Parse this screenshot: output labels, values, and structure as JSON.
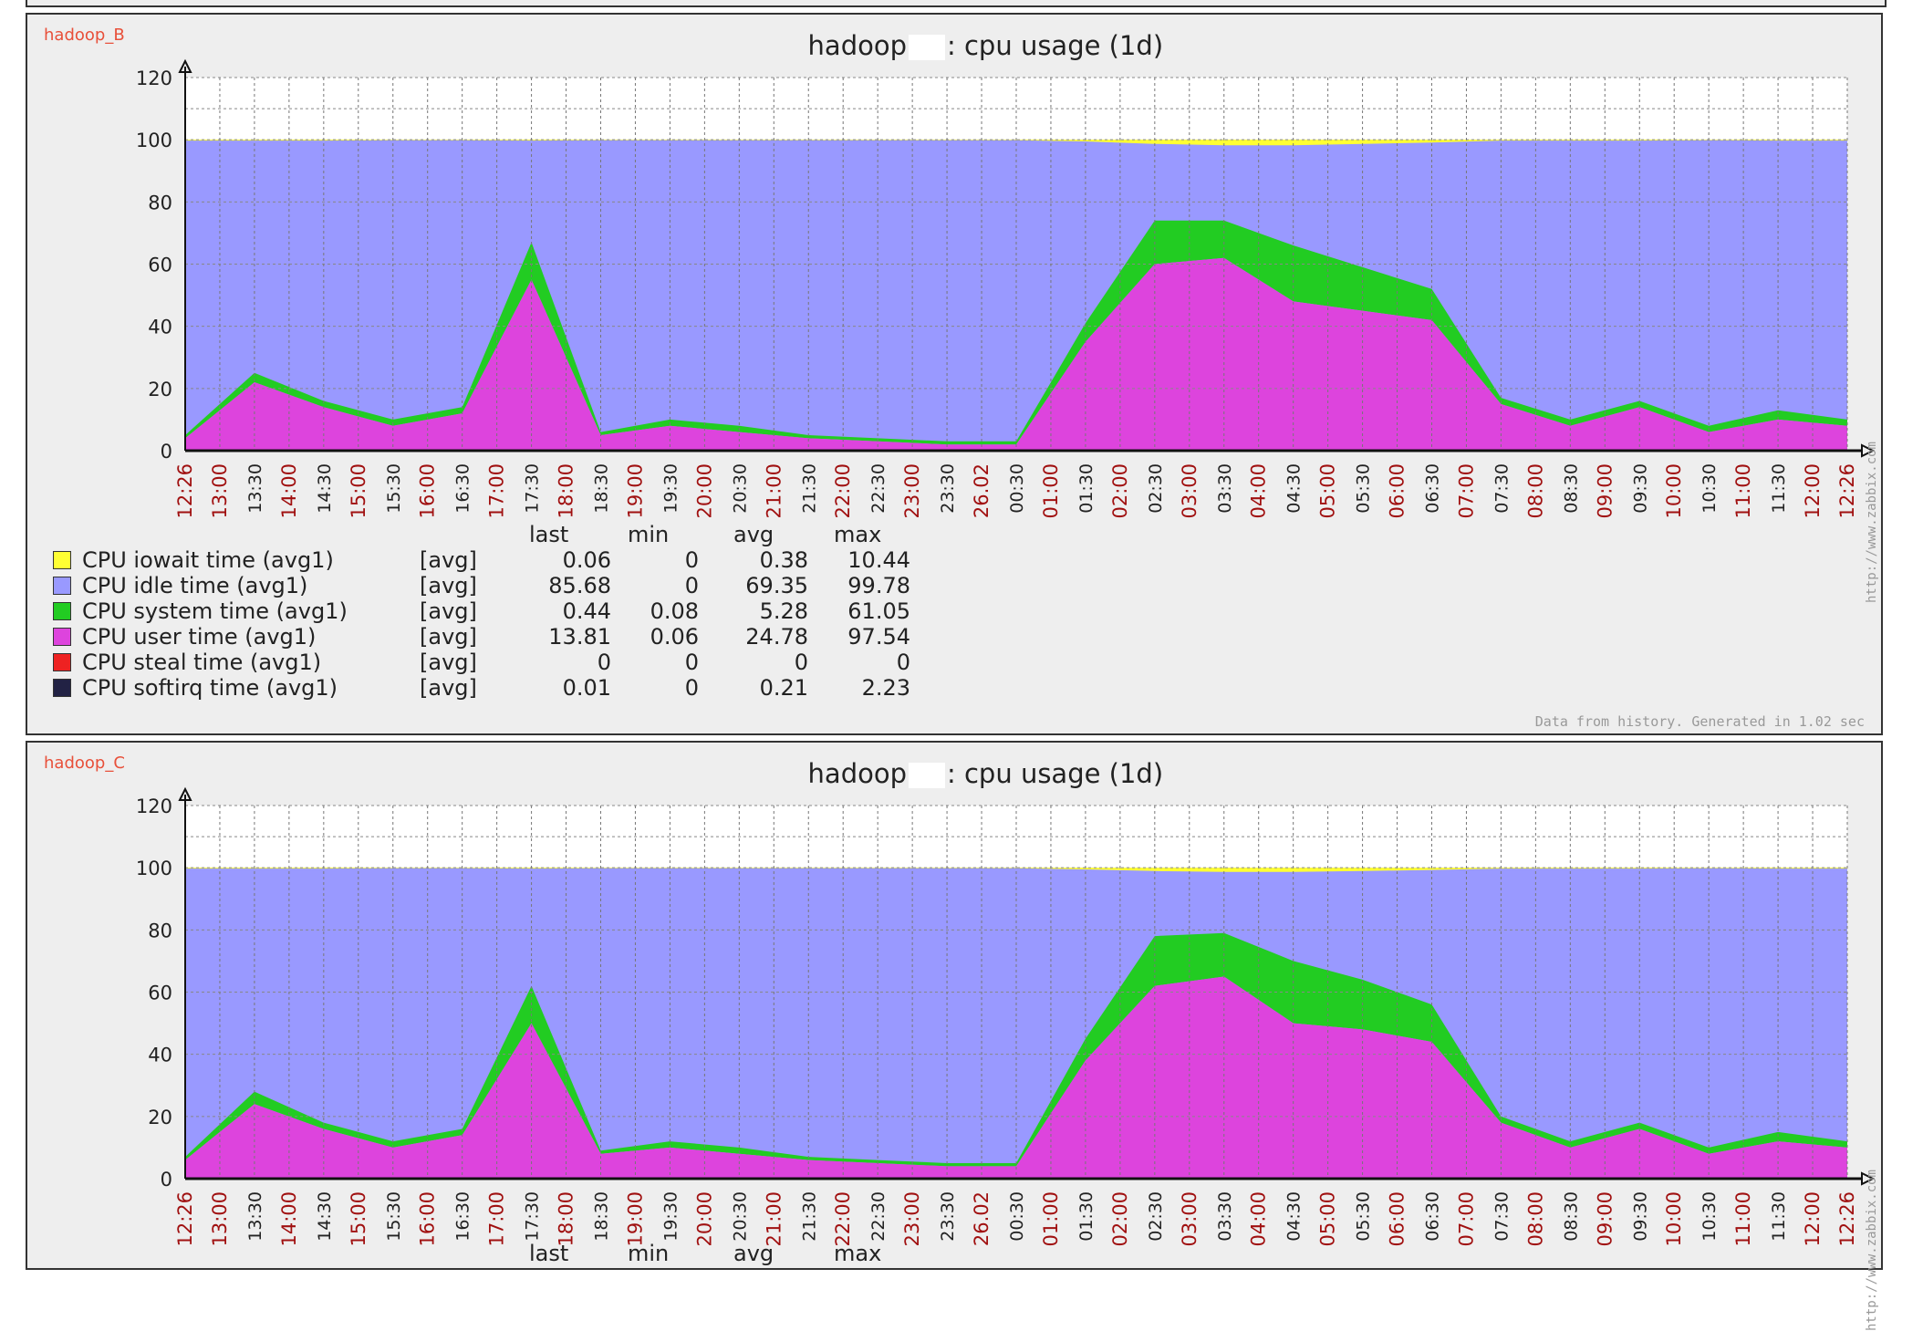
{
  "panels": [
    {
      "host": "hadoop_B",
      "title_prefix": "hadoop",
      "title_suffix": ": cpu usage  (1d)",
      "footer": "Data from history. Generated in 1.02 sec",
      "side_url": "http://www.zabbix.com",
      "legend_headers": [
        "last",
        "min",
        "avg",
        "max"
      ],
      "legend": [
        {
          "name": "CPU iowait time (avg1)",
          "fn": "[avg]",
          "last": "0.06",
          "min": "0",
          "avg": "0.38",
          "max": "10.44",
          "color": "#ffff33"
        },
        {
          "name": "CPU idle time (avg1)",
          "fn": "[avg]",
          "last": "85.68",
          "min": "0",
          "avg": "69.35",
          "max": "99.78",
          "color": "#9999ff"
        },
        {
          "name": "CPU system time (avg1)",
          "fn": "[avg]",
          "last": "0.44",
          "min": "0.08",
          "avg": "5.28",
          "max": "61.05",
          "color": "#22cc22"
        },
        {
          "name": "CPU user time (avg1)",
          "fn": "[avg]",
          "last": "13.81",
          "min": "0.06",
          "avg": "24.78",
          "max": "97.54",
          "color": "#dd44dd"
        },
        {
          "name": "CPU steal time (avg1)",
          "fn": "[avg]",
          "last": "0",
          "min": "0",
          "avg": "0",
          "max": "0",
          "color": "#ee2222"
        },
        {
          "name": "CPU softirq time (avg1)",
          "fn": "[avg]",
          "last": "0.01",
          "min": "0",
          "avg": "0.21",
          "max": "2.23",
          "color": "#222244"
        }
      ]
    },
    {
      "host": "hadoop_C",
      "title_prefix": "hadoop",
      "title_suffix": ": cpu usage  (1d)",
      "side_url": "http://www.zabbix.com",
      "legend_headers": [
        "last",
        "min",
        "avg",
        "max"
      ],
      "legend": []
    }
  ],
  "chart_data": [
    {
      "type": "area",
      "stacked": true,
      "title": "hadoop : cpu usage  (1d)",
      "ylim": [
        0,
        120
      ],
      "yticks": [
        0,
        20,
        40,
        60,
        80,
        100,
        120
      ],
      "xticks": [
        "12:26",
        "13:00",
        "13:30",
        "14:00",
        "14:30",
        "15:00",
        "15:30",
        "16:00",
        "16:30",
        "17:00",
        "17:30",
        "18:00",
        "18:30",
        "19:00",
        "19:30",
        "20:00",
        "20:30",
        "21:00",
        "21:30",
        "22:00",
        "22:30",
        "23:00",
        "23:30",
        "26.02",
        "00:30",
        "01:00",
        "01:30",
        "02:00",
        "02:30",
        "03:00",
        "03:30",
        "04:00",
        "04:30",
        "05:00",
        "05:30",
        "06:00",
        "06:30",
        "07:00",
        "07:30",
        "08:00",
        "08:30",
        "09:00",
        "09:30",
        "10:00",
        "10:30",
        "11:00",
        "11:30",
        "12:00",
        "12:26"
      ],
      "xticks_red": [
        "12:26",
        "13:00",
        "14:00",
        "15:00",
        "16:00",
        "17:00",
        "18:00",
        "19:00",
        "20:00",
        "21:00",
        "22:00",
        "23:00",
        "26.02",
        "01:00",
        "02:00",
        "03:00",
        "04:00",
        "05:00",
        "06:00",
        "07:00",
        "08:00",
        "09:00",
        "10:00",
        "11:00",
        "12:00"
      ],
      "colors": {
        "iowait": "#ffff33",
        "idle": "#9999ff",
        "system": "#22cc22",
        "user": "#dd44dd",
        "softirq": "#222244",
        "axis": "#333333",
        "tick_red": "#a01010"
      },
      "x": [
        0,
        1,
        2,
        3,
        4,
        5,
        6,
        7,
        8,
        9,
        10,
        11,
        12,
        13,
        14,
        15,
        16,
        17,
        18,
        19,
        20,
        21,
        22,
        23,
        24
      ],
      "series": [
        {
          "name": "CPU user time (avg1)",
          "values": [
            4,
            22,
            14,
            8,
            12,
            55,
            5,
            8,
            6,
            4,
            3,
            2,
            2,
            35,
            60,
            62,
            48,
            45,
            42,
            15,
            8,
            14,
            6,
            10,
            8
          ]
        },
        {
          "name": "CPU system time (avg1)",
          "values": [
            1,
            3,
            2,
            2,
            2,
            12,
            1,
            2,
            2,
            1,
            1,
            1,
            1,
            6,
            14,
            12,
            18,
            14,
            10,
            2,
            2,
            2,
            2,
            3,
            2
          ]
        },
        {
          "name": "CPU iowait time (avg1)",
          "values": [
            0.3,
            0.3,
            0.3,
            0.2,
            0.2,
            0.3,
            0.2,
            0.2,
            0.2,
            0.2,
            0.2,
            0.2,
            0.2,
            0.6,
            1.5,
            2,
            2,
            1.5,
            1,
            0.3,
            0.3,
            0.3,
            0.2,
            0.3,
            0.3
          ]
        }
      ]
    },
    {
      "type": "area",
      "stacked": true,
      "title": "hadoop : cpu usage  (1d)",
      "ylim": [
        0,
        120
      ],
      "yticks": [
        0,
        20,
        40,
        60,
        80,
        100,
        120
      ],
      "xticks": [
        "12:26",
        "13:00",
        "13:30",
        "14:00",
        "14:30",
        "15:00",
        "15:30",
        "16:00",
        "16:30",
        "17:00",
        "17:30",
        "18:00",
        "18:30",
        "19:00",
        "19:30",
        "20:00",
        "20:30",
        "21:00",
        "21:30",
        "22:00",
        "22:30",
        "23:00",
        "23:30",
        "26.02",
        "00:30",
        "01:00",
        "01:30",
        "02:00",
        "02:30",
        "03:00",
        "03:30",
        "04:00",
        "04:30",
        "05:00",
        "05:30",
        "06:00",
        "06:30",
        "07:00",
        "07:30",
        "08:00",
        "08:30",
        "09:00",
        "09:30",
        "10:00",
        "10:30",
        "11:00",
        "11:30",
        "12:00",
        "12:26"
      ],
      "xticks_red": [
        "12:26",
        "13:00",
        "14:00",
        "15:00",
        "16:00",
        "17:00",
        "18:00",
        "19:00",
        "20:00",
        "21:00",
        "22:00",
        "23:00",
        "26.02",
        "01:00",
        "02:00",
        "03:00",
        "04:00",
        "05:00",
        "06:00",
        "07:00",
        "08:00",
        "09:00",
        "10:00",
        "11:00",
        "12:00"
      ],
      "colors": {
        "iowait": "#ffff33",
        "idle": "#9999ff",
        "system": "#22cc22",
        "user": "#dd44dd",
        "softirq": "#222244",
        "axis": "#333333",
        "tick_red": "#a01010"
      },
      "x": [
        0,
        1,
        2,
        3,
        4,
        5,
        6,
        7,
        8,
        9,
        10,
        11,
        12,
        13,
        14,
        15,
        16,
        17,
        18,
        19,
        20,
        21,
        22,
        23,
        24
      ],
      "series": [
        {
          "name": "CPU user time (avg1)",
          "values": [
            6,
            24,
            16,
            10,
            14,
            50,
            8,
            10,
            8,
            6,
            5,
            4,
            4,
            38,
            62,
            65,
            50,
            48,
            44,
            18,
            10,
            16,
            8,
            12,
            10
          ]
        },
        {
          "name": "CPU system time (avg1)",
          "values": [
            1,
            4,
            2,
            2,
            2,
            12,
            1,
            2,
            2,
            1,
            1,
            1,
            1,
            7,
            16,
            14,
            20,
            16,
            12,
            2,
            2,
            2,
            2,
            3,
            2
          ]
        },
        {
          "name": "CPU iowait time (avg1)",
          "values": [
            0.3,
            0.3,
            0.3,
            0.2,
            0.2,
            0.3,
            0.2,
            0.2,
            0.2,
            0.2,
            0.2,
            0.2,
            0.2,
            0.6,
            1.2,
            1.5,
            1.5,
            1.2,
            0.8,
            0.3,
            0.3,
            0.3,
            0.2,
            0.3,
            0.3
          ]
        }
      ]
    }
  ]
}
